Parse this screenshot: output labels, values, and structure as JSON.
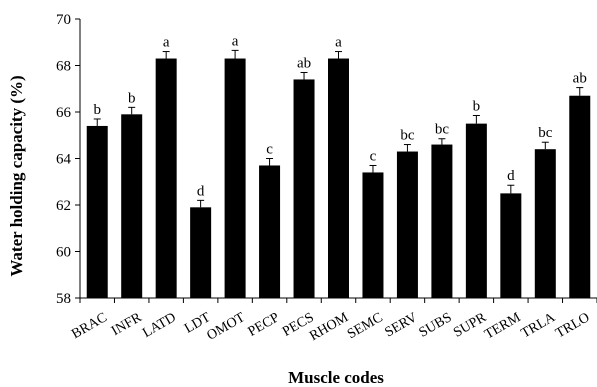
{
  "chart_data": {
    "type": "bar",
    "title": "",
    "xlabel": "Muscle codes",
    "ylabel": "Water holding capacity (%)",
    "ylim": [
      58,
      70
    ],
    "yticks": [
      58,
      60,
      62,
      64,
      66,
      68,
      70
    ],
    "grid": false,
    "categories": [
      "BRAC",
      "INFR",
      "LATD",
      "LDT",
      "OMOT",
      "PECP",
      "PECS",
      "RHOM",
      "SEMC",
      "SERV",
      "SUBS",
      "SUPR",
      "TERM",
      "TRLA",
      "TRLO"
    ],
    "values": [
      65.4,
      65.9,
      68.3,
      61.9,
      68.3,
      63.7,
      67.4,
      68.3,
      63.4,
      64.3,
      64.6,
      65.5,
      62.5,
      64.4,
      66.7
    ],
    "errors": [
      0.3,
      0.3,
      0.3,
      0.3,
      0.35,
      0.3,
      0.3,
      0.3,
      0.3,
      0.3,
      0.25,
      0.35,
      0.35,
      0.3,
      0.35
    ],
    "significance_letters": [
      "b",
      "b",
      "a",
      "d",
      "a",
      "c",
      "ab",
      "a",
      "c",
      "bc",
      "bc",
      "b",
      "d",
      "bc",
      "ab"
    ],
    "bar_color": "#000000"
  }
}
